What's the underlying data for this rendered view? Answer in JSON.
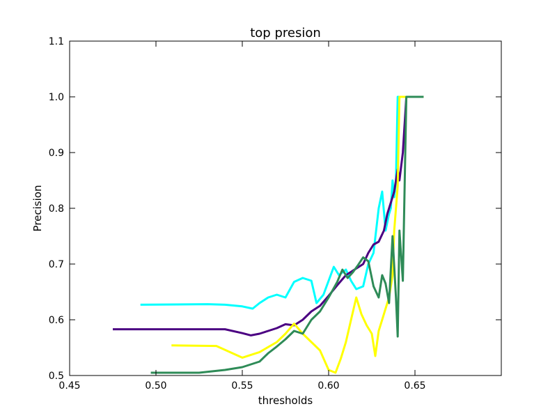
{
  "chart_data": {
    "type": "line",
    "title": "top presion",
    "xlabel": "thresholds",
    "ylabel": "Precision",
    "xlim": [
      0.45,
      0.7
    ],
    "ylim": [
      0.5,
      1.1
    ],
    "xticks": [
      "0.45",
      "0.50",
      "0.55",
      "0.60",
      "0.65"
    ],
    "yticks": [
      "0.5",
      "0.6",
      "0.7",
      "0.8",
      "0.9",
      "1.0",
      "1.1"
    ],
    "grid": false,
    "series": [
      {
        "color": "#00ffff",
        "x": [
          0.491,
          0.53,
          0.54,
          0.55,
          0.556,
          0.56,
          0.565,
          0.57,
          0.575,
          0.58,
          0.585,
          0.59,
          0.593,
          0.597,
          0.6,
          0.603,
          0.606,
          0.61,
          0.613,
          0.616,
          0.62,
          0.623,
          0.626,
          0.629,
          0.631,
          0.633,
          0.635,
          0.636,
          0.637,
          0.638,
          0.639,
          0.64,
          0.641,
          0.655
        ],
        "y": [
          0.627,
          0.628,
          0.627,
          0.624,
          0.62,
          0.63,
          0.64,
          0.645,
          0.64,
          0.668,
          0.675,
          0.67,
          0.63,
          0.645,
          0.67,
          0.695,
          0.68,
          0.69,
          0.67,
          0.655,
          0.66,
          0.7,
          0.72,
          0.8,
          0.83,
          0.76,
          0.79,
          0.8,
          0.85,
          0.82,
          0.85,
          1.0,
          1.0,
          1.0
        ]
      },
      {
        "color": "#4b0082",
        "x": [
          0.475,
          0.54,
          0.55,
          0.555,
          0.56,
          0.565,
          0.57,
          0.575,
          0.58,
          0.585,
          0.59,
          0.595,
          0.6,
          0.605,
          0.61,
          0.615,
          0.62,
          0.623,
          0.626,
          0.629,
          0.632,
          0.634,
          0.636,
          0.638,
          0.64,
          0.641,
          0.643,
          0.645,
          0.655
        ],
        "y": [
          0.583,
          0.583,
          0.576,
          0.572,
          0.575,
          0.58,
          0.585,
          0.592,
          0.59,
          0.6,
          0.615,
          0.625,
          0.643,
          0.662,
          0.68,
          0.69,
          0.7,
          0.72,
          0.735,
          0.74,
          0.76,
          0.79,
          0.81,
          0.83,
          0.87,
          0.85,
          0.9,
          1.0,
          1.0
        ]
      },
      {
        "color": "#ffff00",
        "x": [
          0.509,
          0.535,
          0.55,
          0.56,
          0.57,
          0.575,
          0.58,
          0.585,
          0.59,
          0.595,
          0.6,
          0.604,
          0.607,
          0.61,
          0.613,
          0.616,
          0.619,
          0.622,
          0.625,
          0.627,
          0.629,
          0.631,
          0.633,
          0.635,
          0.637,
          0.638,
          0.639,
          0.64,
          0.641,
          0.655
        ],
        "y": [
          0.554,
          0.553,
          0.532,
          0.542,
          0.56,
          0.575,
          0.593,
          0.575,
          0.56,
          0.545,
          0.51,
          0.505,
          0.53,
          0.56,
          0.6,
          0.64,
          0.61,
          0.59,
          0.575,
          0.535,
          0.58,
          0.6,
          0.62,
          0.64,
          0.68,
          0.76,
          0.8,
          0.84,
          1.0,
          1.0
        ]
      },
      {
        "color": "#2e8b57",
        "x": [
          0.497,
          0.525,
          0.54,
          0.55,
          0.56,
          0.565,
          0.57,
          0.575,
          0.58,
          0.585,
          0.59,
          0.595,
          0.6,
          0.605,
          0.608,
          0.611,
          0.614,
          0.617,
          0.62,
          0.623,
          0.626,
          0.629,
          0.631,
          0.633,
          0.635,
          0.637,
          0.639,
          0.64,
          0.641,
          0.643,
          0.645,
          0.655
        ],
        "y": [
          0.505,
          0.505,
          0.51,
          0.515,
          0.525,
          0.54,
          0.552,
          0.565,
          0.58,
          0.575,
          0.6,
          0.615,
          0.64,
          0.668,
          0.69,
          0.675,
          0.685,
          0.698,
          0.712,
          0.705,
          0.66,
          0.64,
          0.68,
          0.665,
          0.63,
          0.75,
          0.64,
          0.57,
          0.76,
          0.67,
          1.0,
          1.0
        ]
      }
    ]
  }
}
